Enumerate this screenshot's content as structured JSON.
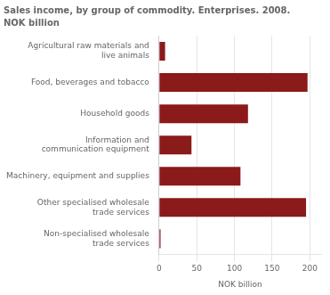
{
  "chart_data": {
    "type": "bar",
    "title": "Sales income, by group of commodity. Enterprises. 2008.",
    "subtitle": "NOK billion",
    "categories": [
      "Non-specialised wholesale\ntrade services",
      "Other specialised wholesale\ntrade services",
      "Machinery, equipment and supplies",
      "Information and\ncommunication equipment",
      "Household goods",
      "Food, beverages and tobacco",
      "Agricultural raw materials and\nlive animals"
    ],
    "values": [
      2,
      195,
      108,
      43,
      118,
      197,
      8
    ],
    "color": "#8B1A1A",
    "orientation": "horizontal",
    "xlabel": "NOK billion",
    "xlim": [
      0,
      215
    ],
    "xticks": [
      0,
      50,
      100,
      150,
      200
    ],
    "grid": true
  }
}
